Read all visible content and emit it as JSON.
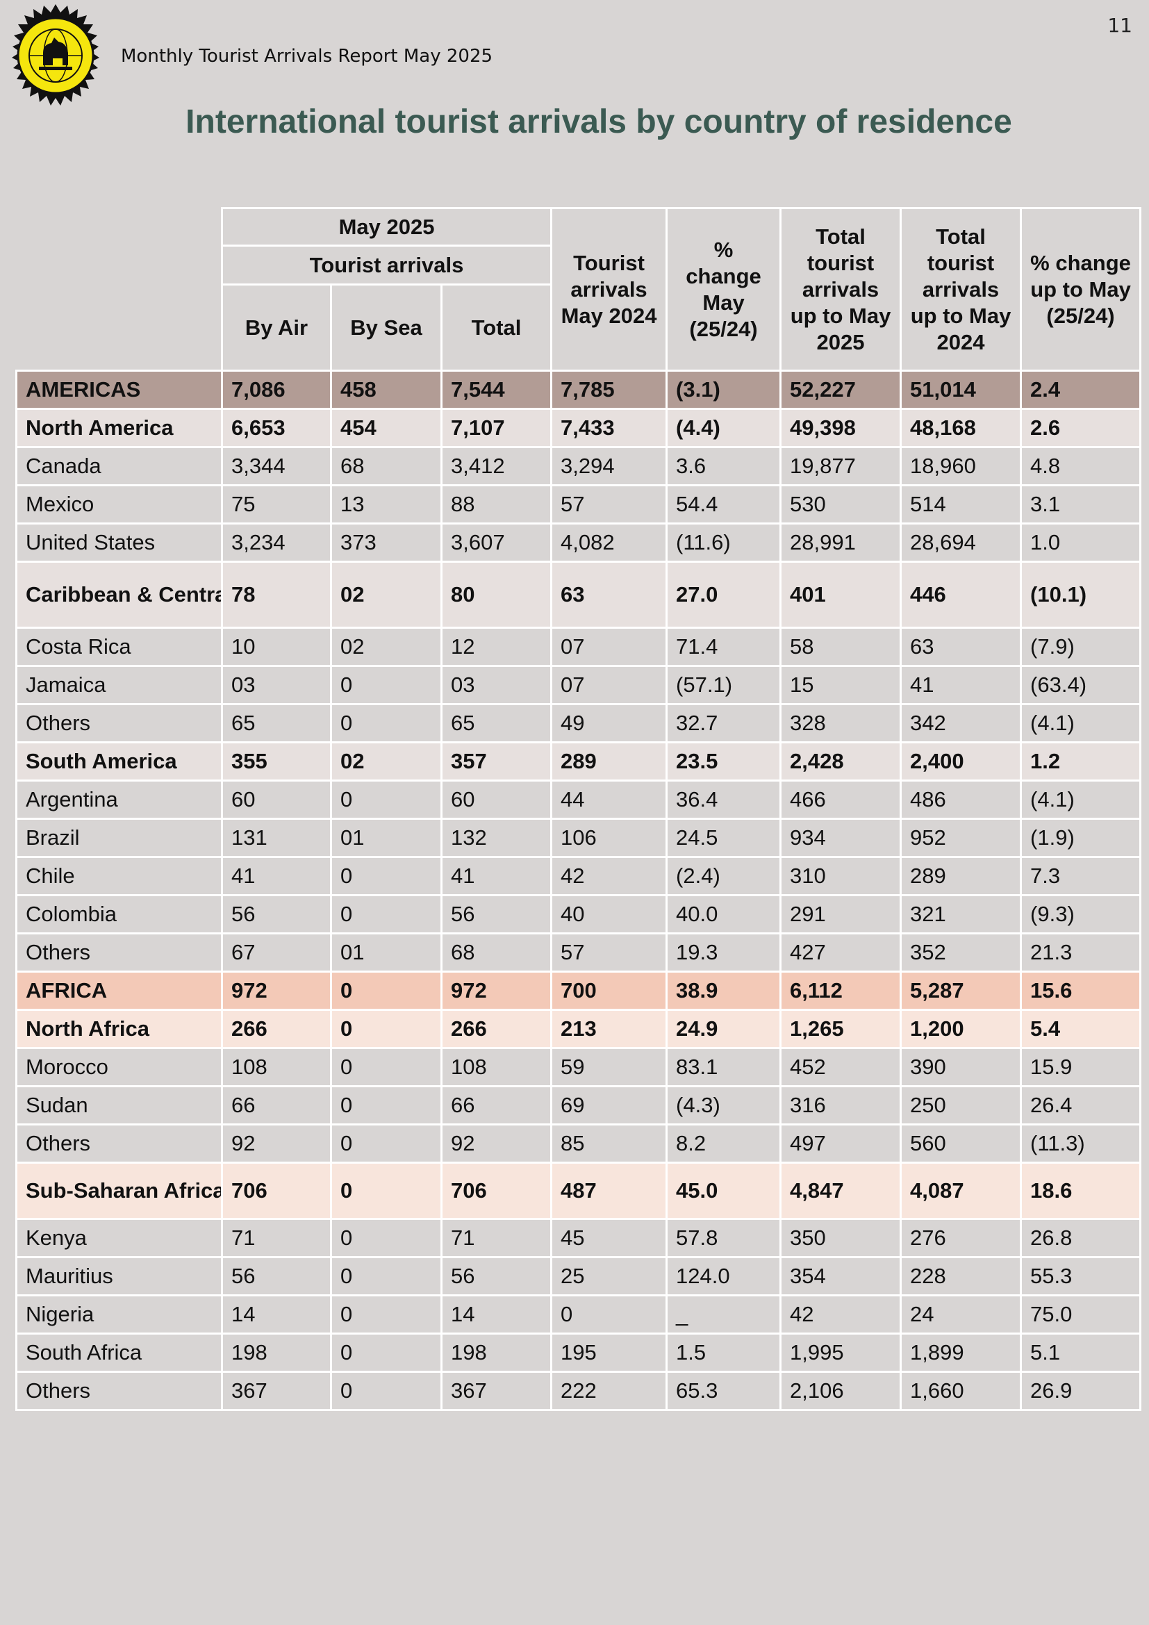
{
  "header": {
    "report_title": "Monthly Tourist Arrivals Report May 2025",
    "page_number": "11",
    "main_title": "International tourist arrivals by country of residence"
  },
  "table": {
    "group_header": "May 2025",
    "subgroup_header": "Tourist arrivals",
    "col_by_air": "By Air",
    "col_by_sea": "By Sea",
    "col_total": "Total",
    "col_arrivals_may_2024": "Tourist arrivals May 2024",
    "col_pct_change_may": "% change May (25/24)",
    "col_total_upto_2025": "Total tourist arrivals up to May 2025",
    "col_total_upto_2024": "Total tourist arrivals up to May 2024",
    "col_pct_change_upto": "% change up to May (25/24)",
    "rows": [
      {
        "name": "AMERICAS",
        "level": "continent",
        "air": "7,086",
        "sea": "458",
        "total": "7,544",
        "may2024": "7,785",
        "pct": "(3.1)",
        "upto2025": "52,227",
        "upto2024": "51,014",
        "pct_upto": "2.4"
      },
      {
        "name": "North America",
        "level": "region",
        "air": "6,653",
        "sea": "454",
        "total": "7,107",
        "may2024": "7,433",
        "pct": "(4.4)",
        "upto2025": "49,398",
        "upto2024": "48,168",
        "pct_upto": "2.6"
      },
      {
        "name": "Canada",
        "level": "country",
        "air": "3,344",
        "sea": "68",
        "total": "3,412",
        "may2024": "3,294",
        "pct": "3.6",
        "upto2025": "19,877",
        "upto2024": "18,960",
        "pct_upto": "4.8"
      },
      {
        "name": "Mexico",
        "level": "country",
        "air": "75",
        "sea": "13",
        "total": "88",
        "may2024": "57",
        "pct": "54.4",
        "upto2025": "530",
        "upto2024": "514",
        "pct_upto": "3.1"
      },
      {
        "name": "United States",
        "level": "country",
        "air": "3,234",
        "sea": "373",
        "total": "3,607",
        "may2024": "4,082",
        "pct": "(11.6)",
        "upto2025": "28,991",
        "upto2024": "28,694",
        "pct_upto": "1.0"
      },
      {
        "name": "Caribbean & Central America",
        "level": "region",
        "air": "78",
        "sea": "02",
        "total": "80",
        "may2024": "63",
        "pct": "27.0",
        "upto2025": "401",
        "upto2024": "446",
        "pct_upto": "(10.1)"
      },
      {
        "name": "Costa Rica",
        "level": "country",
        "air": "10",
        "sea": "02",
        "total": "12",
        "may2024": "07",
        "pct": "71.4",
        "upto2025": "58",
        "upto2024": "63",
        "pct_upto": "(7.9)"
      },
      {
        "name": "Jamaica",
        "level": "country",
        "air": "03",
        "sea": "0",
        "total": "03",
        "may2024": "07",
        "pct": "(57.1)",
        "upto2025": "15",
        "upto2024": "41",
        "pct_upto": "(63.4)"
      },
      {
        "name": "Others",
        "level": "country",
        "air": "65",
        "sea": "0",
        "total": "65",
        "may2024": "49",
        "pct": "32.7",
        "upto2025": "328",
        "upto2024": "342",
        "pct_upto": "(4.1)"
      },
      {
        "name": "South America",
        "level": "region",
        "air": "355",
        "sea": "02",
        "total": "357",
        "may2024": "289",
        "pct": "23.5",
        "upto2025": "2,428",
        "upto2024": "2,400",
        "pct_upto": "1.2"
      },
      {
        "name": "Argentina",
        "level": "country",
        "air": "60",
        "sea": "0",
        "total": "60",
        "may2024": "44",
        "pct": "36.4",
        "upto2025": "466",
        "upto2024": "486",
        "pct_upto": "(4.1)"
      },
      {
        "name": "Brazil",
        "level": "country",
        "air": "131",
        "sea": "01",
        "total": "132",
        "may2024": "106",
        "pct": "24.5",
        "upto2025": "934",
        "upto2024": "952",
        "pct_upto": "(1.9)"
      },
      {
        "name": "Chile",
        "level": "country",
        "air": "41",
        "sea": "0",
        "total": "41",
        "may2024": "42",
        "pct": "(2.4)",
        "upto2025": "310",
        "upto2024": "289",
        "pct_upto": "7.3"
      },
      {
        "name": "Colombia",
        "level": "country",
        "air": "56",
        "sea": "0",
        "total": "56",
        "may2024": "40",
        "pct": "40.0",
        "upto2025": "291",
        "upto2024": "321",
        "pct_upto": "(9.3)"
      },
      {
        "name": "Others",
        "level": "country",
        "air": "67",
        "sea": "01",
        "total": "68",
        "may2024": "57",
        "pct": "19.3",
        "upto2025": "427",
        "upto2024": "352",
        "pct_upto": "21.3"
      },
      {
        "name": "AFRICA",
        "level": "continent africa",
        "air": "972",
        "sea": "0",
        "total": "972",
        "may2024": "700",
        "pct": "38.9",
        "upto2025": "6,112",
        "upto2024": "5,287",
        "pct_upto": "15.6"
      },
      {
        "name": "North Africa",
        "level": "region africa",
        "air": "266",
        "sea": "0",
        "total": "266",
        "may2024": "213",
        "pct": "24.9",
        "upto2025": "1,265",
        "upto2024": "1,200",
        "pct_upto": "5.4"
      },
      {
        "name": "Morocco",
        "level": "country",
        "air": "108",
        "sea": "0",
        "total": "108",
        "may2024": "59",
        "pct": "83.1",
        "upto2025": "452",
        "upto2024": "390",
        "pct_upto": "15.9"
      },
      {
        "name": "Sudan",
        "level": "country",
        "air": "66",
        "sea": "0",
        "total": "66",
        "may2024": "69",
        "pct": "(4.3)",
        "upto2025": "316",
        "upto2024": "250",
        "pct_upto": "26.4"
      },
      {
        "name": "Others",
        "level": "country",
        "air": "92",
        "sea": "0",
        "total": "92",
        "may2024": "85",
        "pct": "8.2",
        "upto2025": "497",
        "upto2024": "560",
        "pct_upto": "(11.3)"
      },
      {
        "name": "Sub-Saharan Africa",
        "level": "region africa",
        "air": "706",
        "sea": "0",
        "total": "706",
        "may2024": "487",
        "pct": "45.0",
        "upto2025": "4,847",
        "upto2024": "4,087",
        "pct_upto": "18.6"
      },
      {
        "name": "Kenya",
        "level": "country",
        "air": "71",
        "sea": "0",
        "total": "71",
        "may2024": "45",
        "pct": "57.8",
        "upto2025": "350",
        "upto2024": "276",
        "pct_upto": "26.8"
      },
      {
        "name": "Mauritius",
        "level": "country",
        "air": "56",
        "sea": "0",
        "total": "56",
        "may2024": "25",
        "pct": "124.0",
        "upto2025": "354",
        "upto2024": "228",
        "pct_upto": "55.3"
      },
      {
        "name": "Nigeria",
        "level": "country",
        "air": "14",
        "sea": "0",
        "total": "14",
        "may2024": "0",
        "pct": "_",
        "upto2025": "42",
        "upto2024": "24",
        "pct_upto": "75.0"
      },
      {
        "name": "South Africa",
        "level": "country",
        "air": "198",
        "sea": "0",
        "total": "198",
        "may2024": "195",
        "pct": "1.5",
        "upto2025": "1,995",
        "upto2024": "1,899",
        "pct_upto": "5.1"
      },
      {
        "name": "Others",
        "level": "country",
        "air": "367",
        "sea": "0",
        "total": "367",
        "may2024": "222",
        "pct": "65.3",
        "upto2025": "2,106",
        "upto2024": "1,660",
        "pct_upto": "26.9"
      }
    ]
  }
}
